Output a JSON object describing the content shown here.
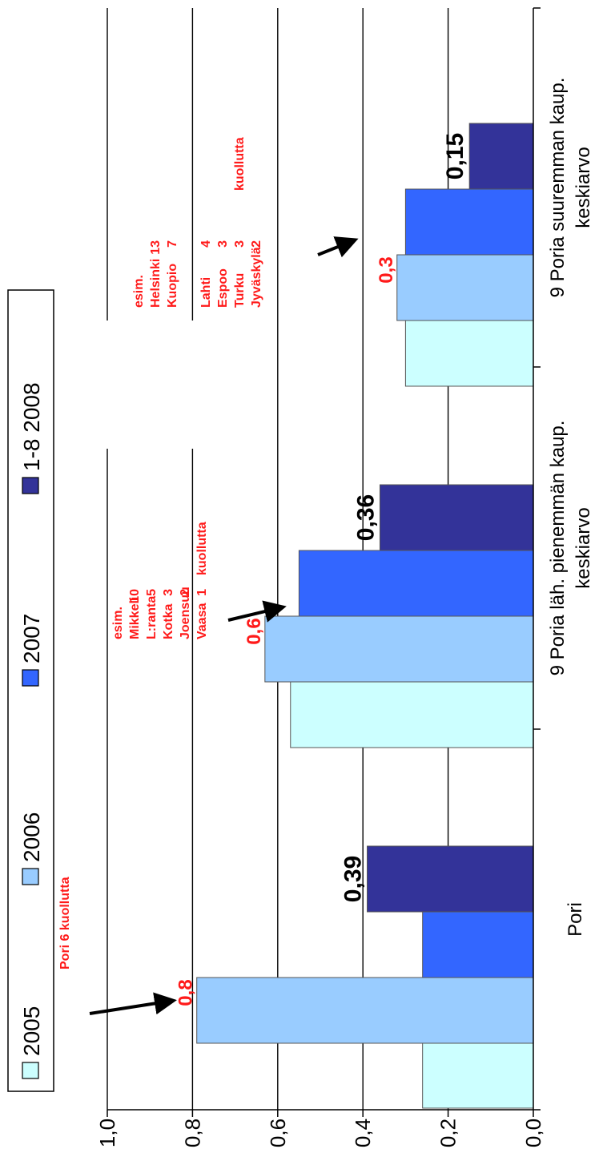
{
  "chart_data": {
    "type": "bar",
    "orientation": "horizontal-rotated",
    "categories": [
      "Pori",
      "9 Poria läh. pienemmän kaup. keskiarvo",
      "9 Poria suuremman kaup. keskiarvo"
    ],
    "category_lines": [
      [
        "Pori"
      ],
      [
        "9 Poria läh. pienemmän kaup.",
        "keskiarvo"
      ],
      [
        "9 Poria suuremman kaup.",
        "keskiarvo"
      ]
    ],
    "series": [
      {
        "name": "2005",
        "color": "#ccffff",
        "values": [
          0.26,
          0.57,
          0.3
        ]
      },
      {
        "name": "2006",
        "color": "#99ccff",
        "values": [
          0.79,
          0.63,
          0.32
        ]
      },
      {
        "name": "2007",
        "color": "#3366ff",
        "values": [
          0.26,
          0.55,
          0.3
        ]
      },
      {
        "name": "1-8 2008",
        "color": "#333399",
        "values": [
          0.39,
          0.36,
          0.15
        ]
      }
    ],
    "ylim": [
      0.0,
      1.0
    ],
    "yticks": [
      "0,0",
      "0,2",
      "0,4",
      "0,6",
      "0,8",
      "1,0"
    ],
    "grid": true,
    "legend_position": "top",
    "value_labels": {
      "black": [
        "0,39",
        "0,36",
        "0,15"
      ],
      "red": [
        "0,8",
        "0,6",
        "0,3"
      ]
    },
    "annotations": {
      "pori": "Pori  6 kuollutta",
      "small_cities": {
        "header": "esim.",
        "rows": [
          [
            "Mikkeli",
            "10"
          ],
          [
            "L:ranta",
            "5"
          ],
          [
            "Kotka",
            "3"
          ],
          [
            "Joensuu",
            "2"
          ],
          [
            "Vaasa",
            "1"
          ]
        ],
        "suffix": "kuollutta"
      },
      "large_cities": {
        "header": "esim.",
        "rows": [
          [
            "Helsinki",
            "13"
          ],
          [
            "Kuopio",
            "7"
          ],
          [
            "",
            ""
          ],
          [
            "Lahti",
            "4"
          ],
          [
            "Espoo",
            "3"
          ],
          [
            "Turku",
            "3"
          ],
          [
            "Jyväskylä",
            "2"
          ]
        ],
        "suffix": "kuollutta"
      }
    }
  }
}
